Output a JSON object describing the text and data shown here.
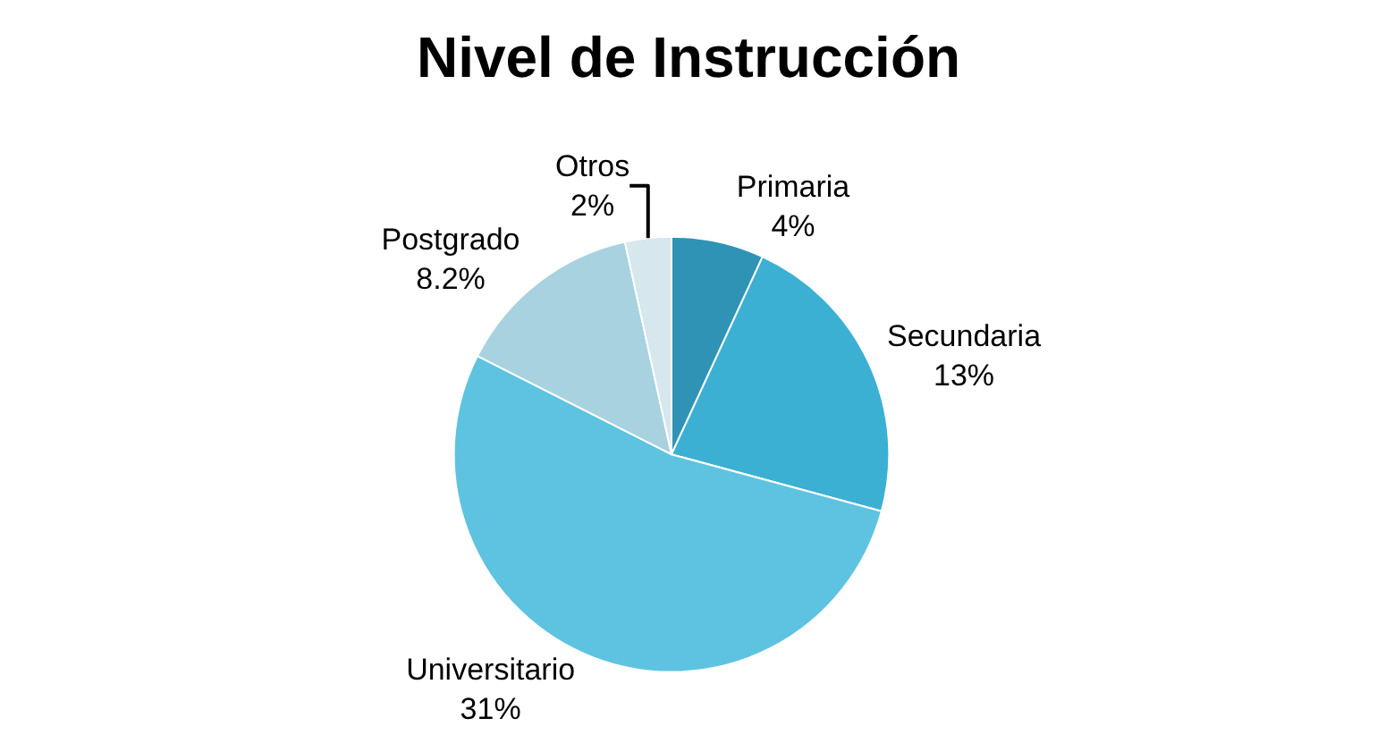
{
  "chart_data": {
    "type": "pie",
    "title": "Nivel de Instrucción",
    "categories": [
      "Primaria",
      "Secundaria",
      "Universitario",
      "Postgrado",
      "Otros"
    ],
    "values": [
      4,
      13,
      31,
      8.2,
      2
    ],
    "value_labels": [
      "4%",
      "13%",
      "31%",
      "8.2%",
      "2%"
    ],
    "colors": [
      "#2f93b5",
      "#3bb0d3",
      "#5ec3e0",
      "#a8d2df",
      "#d6e7ee"
    ],
    "legend": false
  }
}
